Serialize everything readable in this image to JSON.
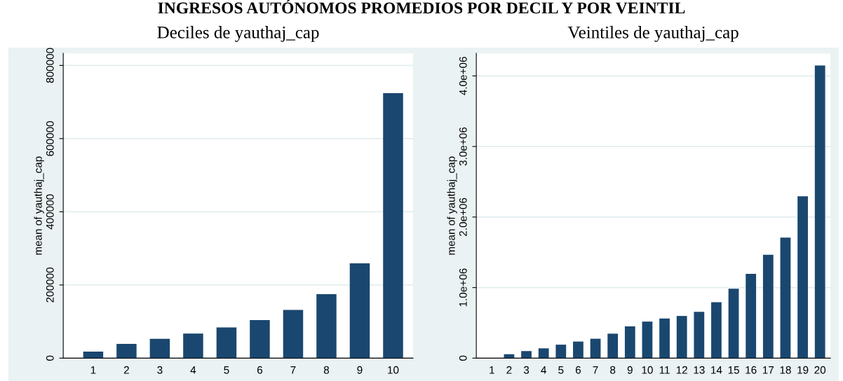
{
  "chart_data": [
    {
      "type": "bar",
      "title": "Deciles de yauthaj_cap",
      "ylabel": "mean of yauthaj_cap",
      "categories": [
        "1",
        "2",
        "3",
        "4",
        "5",
        "6",
        "7",
        "8",
        "9",
        "10"
      ],
      "values": [
        18000,
        39000,
        53000,
        67000,
        84000,
        104000,
        132000,
        175000,
        259000,
        724000
      ],
      "color": "#1a476f",
      "ylim": [
        0,
        833000
      ],
      "yticks": [
        0,
        200000,
        400000,
        600000,
        800000
      ],
      "grid": "y",
      "annotations": [
        "INGRESOS AUTÓNOMOS PROMEDIOS POR DECIL Y POR VEINTIL"
      ]
    },
    {
      "type": "bar",
      "title": "Veintiles de yauthaj_cap",
      "ylabel": "mean of yauthaj_cap",
      "categories": [
        "1",
        "2",
        "3",
        "4",
        "5",
        "6",
        "7",
        "8",
        "9",
        "10",
        "11",
        "12",
        "13",
        "14",
        "15",
        "16",
        "17",
        "18",
        "19",
        "20"
      ],
      "values": [
        0,
        56000,
        100000,
        139000,
        191000,
        235000,
        275000,
        347000,
        450000,
        518000,
        562000,
        598000,
        657000,
        793000,
        984000,
        1195000,
        1466000,
        1709000,
        2295000,
        4147000
      ],
      "color": "#1a476f",
      "ylim": [
        0,
        4320000
      ],
      "yticks": [
        0,
        {
          "value": 1000000,
          "label": "1.0e+06"
        },
        {
          "value": 2000000,
          "label": "2.0e+06"
        },
        {
          "value": 3000000,
          "label": "3.0e+06"
        },
        {
          "value": 4000000,
          "label": "4.0e+06"
        }
      ],
      "grid": "y"
    }
  ]
}
